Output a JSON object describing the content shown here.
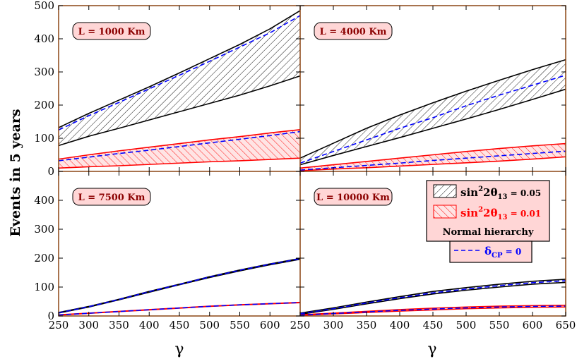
{
  "chart_data": {
    "type": "area",
    "ylabel": "Events in 5 years",
    "xlabel": "γ",
    "xlim": [
      250,
      650
    ],
    "ylim": [
      0,
      500
    ],
    "xticks": [
      250,
      300,
      350,
      400,
      450,
      500,
      550,
      600,
      650
    ],
    "yticks": [
      0,
      100,
      200,
      300,
      400,
      500
    ],
    "xtick_labels": [
      "250",
      "300",
      "350",
      "400",
      "450",
      "500",
      "550",
      "600",
      "650"
    ],
    "xtick_labels_last_left": "250",
    "ytick_labels": [
      "0",
      "100",
      "200",
      "300",
      "400",
      "500"
    ],
    "legend": {
      "s005": {
        "pre": "sin",
        "sup": "2",
        "mid": "2θ",
        "sub": "13",
        "post": " = 0.05",
        "color": "#000000"
      },
      "s001": {
        "pre": "sin",
        "sup": "2",
        "mid": "2θ",
        "sub": "13",
        "post": " = 0.01",
        "color": "#ff0000"
      },
      "hierarchy": "Normal hierarchy",
      "delta": {
        "sym": "δ",
        "sub": "CP",
        "post": " = 0",
        "color": "#0000ff"
      }
    },
    "gamma": [
      250,
      300,
      350,
      400,
      450,
      500,
      550,
      600,
      650
    ],
    "panels": [
      {
        "label": "L = 1000 Km",
        "bands": [
          {
            "name": "sin²2θ₁₃ = 0.05",
            "color": "#000000",
            "upper": [
              132,
              175,
              215,
              255,
              297,
              340,
              383,
              430,
              485
            ],
            "lower": [
              78,
              106,
              130,
              155,
              180,
              205,
              230,
              258,
              288
            ],
            "dcp0": [
              125,
              168,
              208,
              249,
              290,
              332,
              375,
              418,
              470
            ]
          },
          {
            "name": "sin²2θ₁₃ = 0.01",
            "color": "#ff0000",
            "upper": [
              37,
              50,
              62,
              73,
              84,
              95,
              105,
              116,
              126
            ],
            "lower": [
              10,
              14,
              17,
              21,
              25,
              29,
              32,
              36,
              40
            ],
            "dcp0": [
              32,
              43,
              54,
              64,
              75,
              86,
              97,
              108,
              120
            ]
          }
        ]
      },
      {
        "label": "L = 4000 Km",
        "bands": [
          {
            "name": "sin²2θ₁₃ = 0.05",
            "color": "#000000",
            "upper": [
              40,
              85,
              130,
              170,
              207,
              242,
              275,
              307,
              337
            ],
            "lower": [
              20,
              48,
              75,
              102,
              130,
              158,
              187,
              217,
              248
            ],
            "dcp0": [
              25,
              60,
              95,
              130,
              162,
              198,
              230,
              260,
              290
            ]
          },
          {
            "name": "sin²2θ₁₃ = 0.01",
            "color": "#ff0000",
            "upper": [
              10,
              20,
              30,
              40,
              50,
              60,
              69,
              77,
              84
            ],
            "lower": [
              2,
              7,
              11,
              16,
              21,
              26,
              31,
              37,
              44
            ],
            "dcp0": [
              4,
              11,
              18,
              25,
              33,
              40,
              47,
              54,
              61
            ]
          }
        ]
      },
      {
        "label": "L = 7500 Km",
        "bands": [
          {
            "name": "sin²2θ₁₃ = 0.05",
            "color": "#000000",
            "upper": [
              12,
              33,
              58,
              85,
              110,
              136,
              159,
              180,
              199
            ],
            "lower": [
              10,
              31,
              56,
              82,
              108,
              133,
              156,
              177,
              196
            ],
            "dcp0": [
              11,
              32,
              57,
              84,
              109,
              135,
              158,
              179,
              198
            ]
          },
          {
            "name": "sin²2θ₁₃ = 0.01",
            "color": "#ff0000",
            "upper": [
              4,
              10,
              16,
              22,
              28,
              34,
              39,
              43,
              47
            ],
            "lower": [
              3,
              9,
              15,
              21,
              27,
              33,
              38,
              42,
              46
            ],
            "dcp0": [
              3.5,
              9.5,
              15.5,
              21.5,
              27.5,
              33.5,
              38.5,
              42.5,
              46.5
            ]
          }
        ]
      },
      {
        "label": "L = 10000 Km",
        "bands": [
          {
            "name": "sin²2θ₁₃ = 0.05",
            "color": "#000000",
            "upper": [
              10,
              28,
              48,
              67,
              85,
              98,
              110,
              120,
              127
            ],
            "lower": [
              6,
              23,
              42,
              60,
              76,
              89,
              100,
              110,
              116
            ],
            "dcp0": [
              8,
              25,
              45,
              63,
              80,
              93,
              105,
              115,
              122
            ]
          },
          {
            "name": "sin²2θ₁₃ = 0.01",
            "color": "#ff0000",
            "upper": [
              4,
              10,
              16,
              22,
              27,
              31,
              34,
              36,
              37
            ],
            "lower": [
              2,
              7,
              12,
              17,
              21,
              25,
              28,
              30,
              31
            ],
            "dcp0": [
              3,
              8.5,
              14,
              19.5,
              24,
              28,
              31,
              33,
              34
            ]
          }
        ]
      }
    ]
  }
}
